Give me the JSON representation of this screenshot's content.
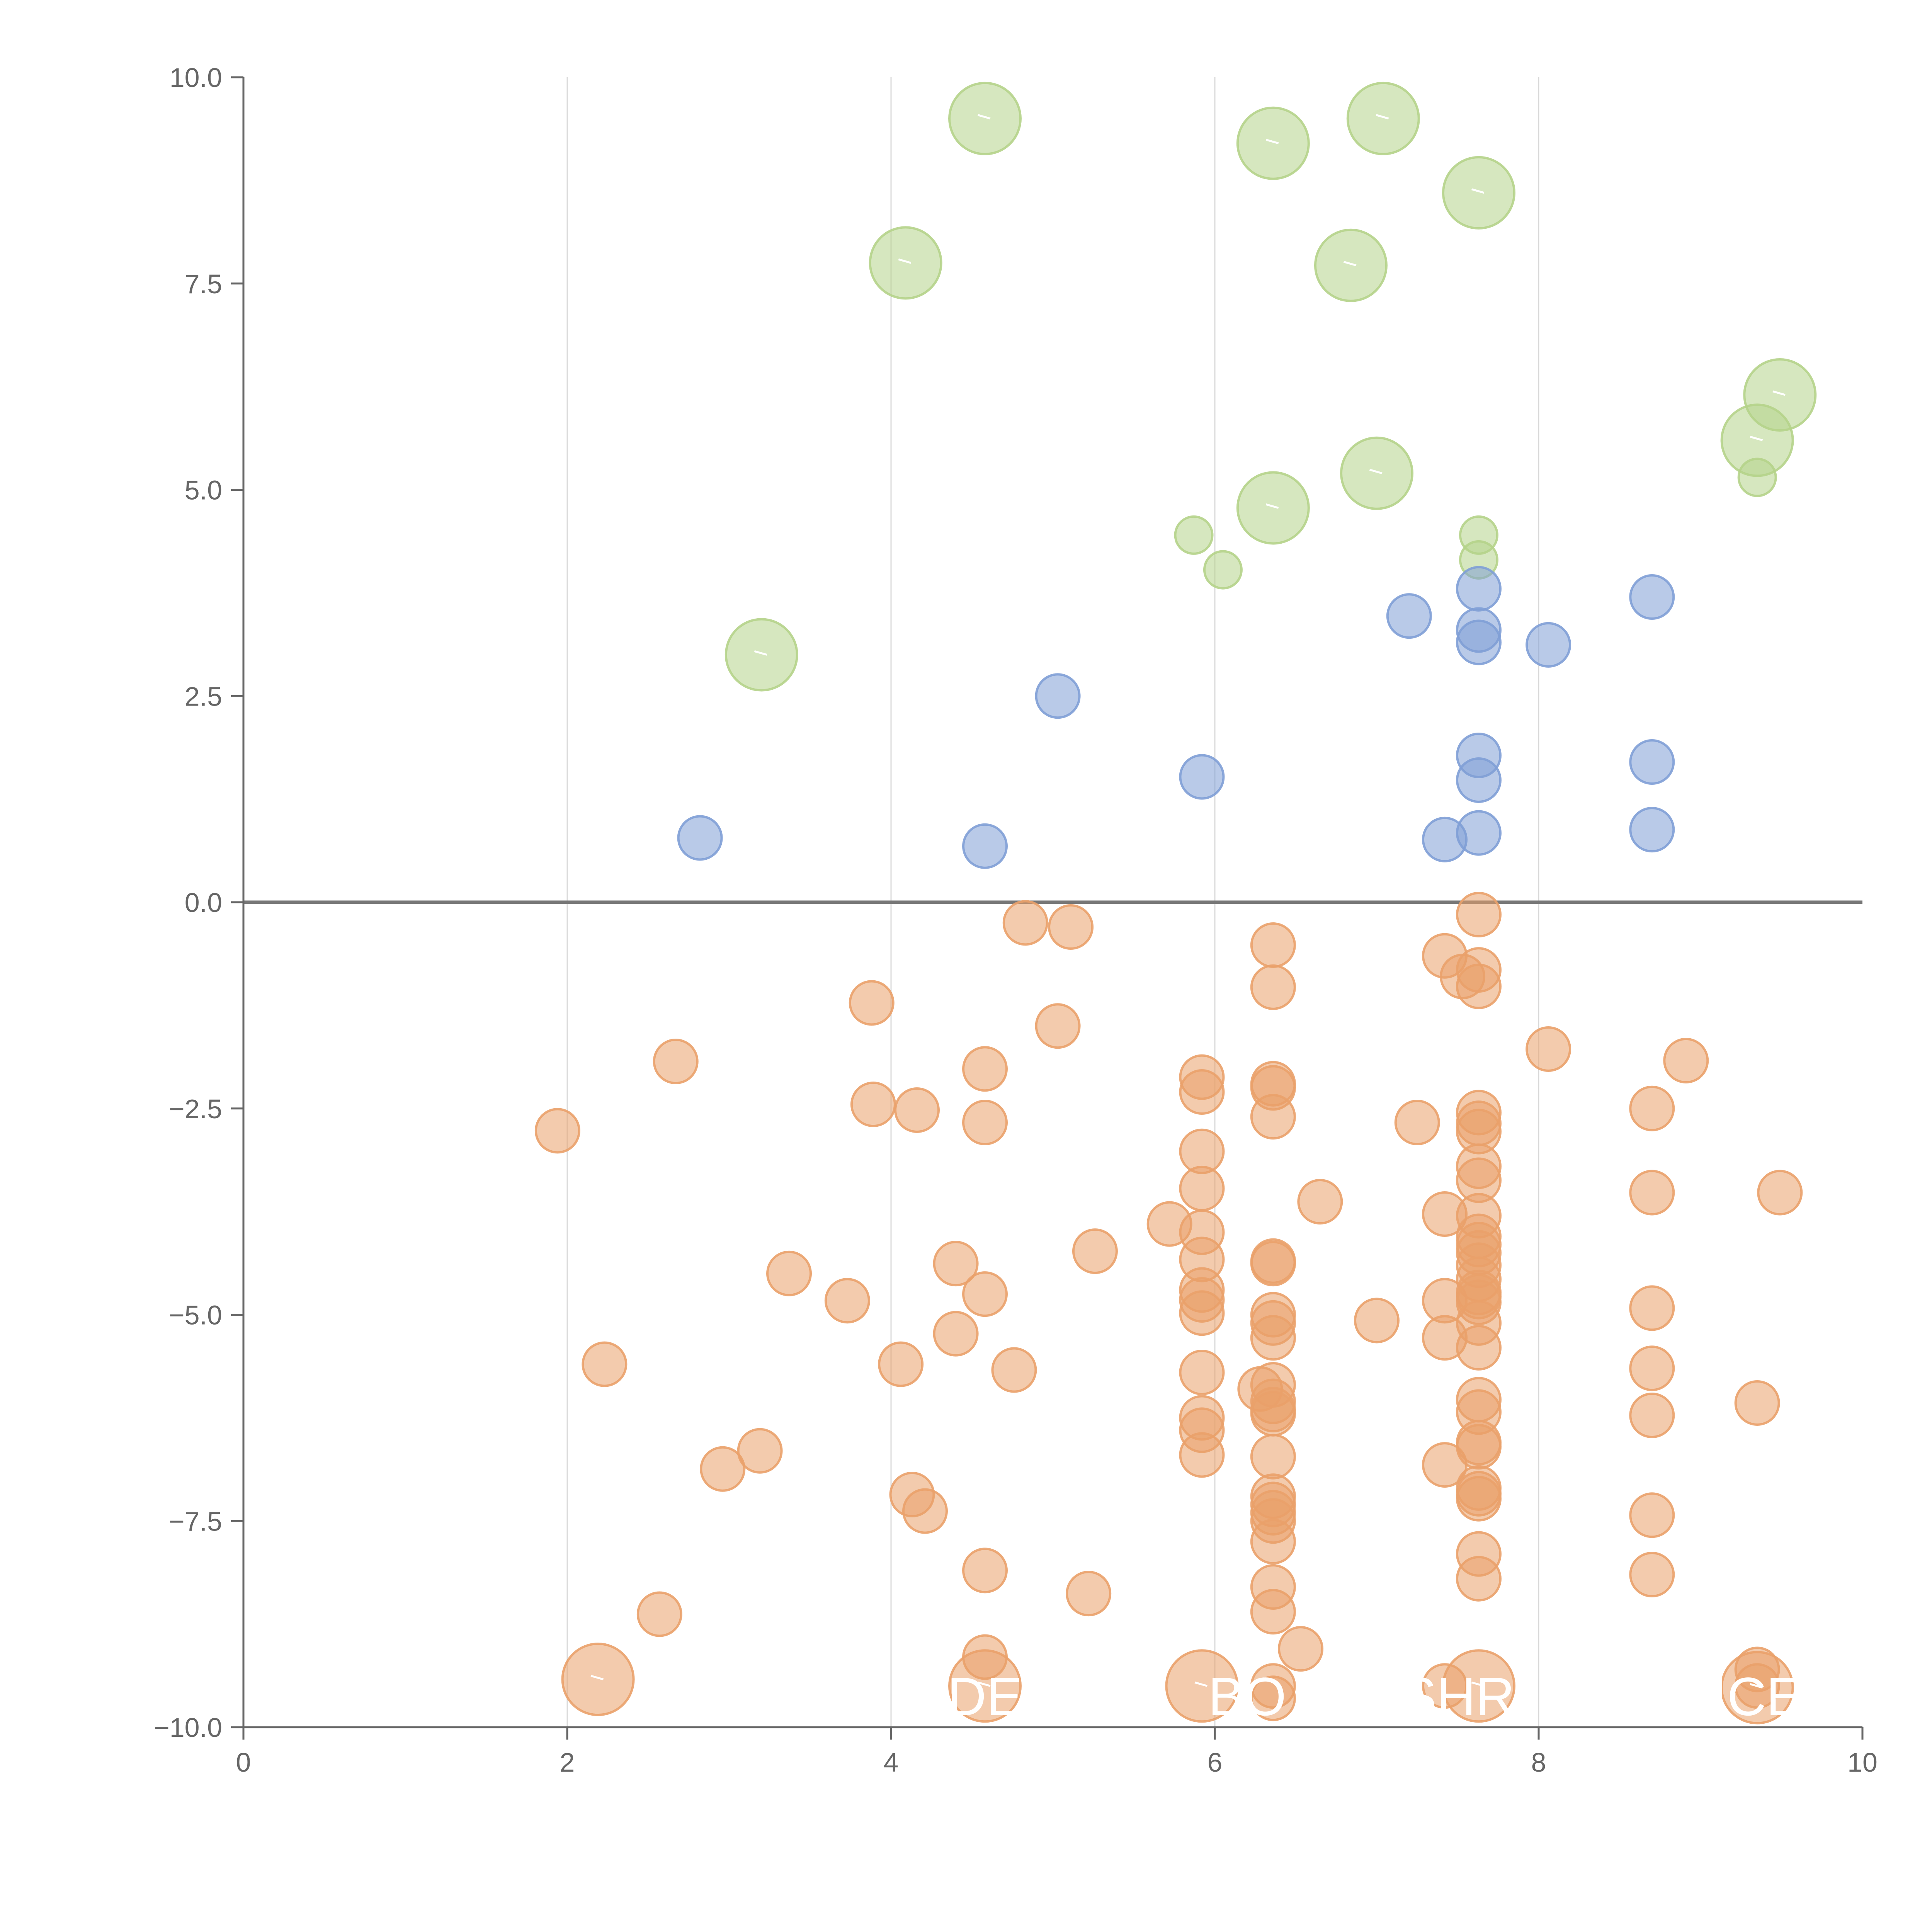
{
  "chart_data": {
    "type": "scatter",
    "title": "",
    "xlabel": "",
    "ylabel": "",
    "xlim": [
      0,
      10
    ],
    "ylim": [
      -10,
      10
    ],
    "x_ticks": [
      "0",
      "2",
      "4",
      "6",
      "8",
      "10"
    ],
    "y_ticks": [
      "−10.0",
      "−7.5",
      "−5.0",
      "−2.5",
      "0.0",
      "2.5",
      "5.0",
      "7.5",
      "10.0"
    ],
    "grid": "vertical",
    "zero_line": true,
    "colors": {
      "green": "#b5d38a",
      "blue": "#7f9fd6",
      "orange": "#eaa16a",
      "axis": "#666666",
      "grid": "#d9d9d9"
    },
    "series": [
      {
        "name": "green",
        "color": "#b5d38a",
        "points": [
          [
            4.58,
            9.5,
            "l"
          ],
          [
            7.04,
            9.5,
            "l"
          ],
          [
            6.36,
            9.2,
            "l"
          ],
          [
            7.63,
            8.6,
            "l"
          ],
          [
            4.09,
            7.75,
            "l"
          ],
          [
            6.84,
            7.72,
            "l"
          ],
          [
            9.49,
            6.15,
            "l"
          ],
          [
            9.35,
            5.6,
            "l"
          ],
          [
            7.0,
            5.2,
            "l"
          ],
          [
            6.36,
            4.78,
            "l"
          ],
          [
            3.2,
            3.0,
            "l"
          ],
          [
            5.87,
            4.45,
            "s"
          ],
          [
            6.05,
            4.03,
            "s"
          ],
          [
            7.63,
            4.45,
            "s"
          ],
          [
            7.63,
            4.15,
            "s"
          ],
          [
            9.35,
            5.15,
            "s"
          ]
        ]
      },
      {
        "name": "blue",
        "color": "#7f9fd6",
        "points": [
          [
            2.82,
            0.78
          ],
          [
            4.58,
            0.68
          ],
          [
            5.03,
            2.5
          ],
          [
            5.92,
            1.52
          ],
          [
            7.2,
            3.47
          ],
          [
            7.42,
            0.76
          ],
          [
            7.63,
            3.8
          ],
          [
            7.63,
            3.3
          ],
          [
            7.63,
            3.15
          ],
          [
            7.63,
            1.78
          ],
          [
            7.63,
            1.48
          ],
          [
            7.63,
            0.84
          ],
          [
            8.06,
            3.12
          ],
          [
            8.7,
            3.7
          ],
          [
            8.7,
            1.7
          ],
          [
            8.7,
            0.88
          ]
        ]
      },
      {
        "name": "orange",
        "color": "#eaa16a",
        "points": [
          [
            1.94,
            -2.77
          ],
          [
            2.23,
            -5.6
          ],
          [
            2.57,
            -8.63
          ],
          [
            2.67,
            -1.93
          ],
          [
            2.96,
            -6.87
          ],
          [
            3.19,
            -6.65
          ],
          [
            3.37,
            -4.5
          ],
          [
            3.73,
            -4.83
          ],
          [
            3.88,
            -1.22
          ],
          [
            3.89,
            -2.45
          ],
          [
            4.06,
            -5.6
          ],
          [
            4.13,
            -7.18
          ],
          [
            4.16,
            -2.52
          ],
          [
            4.21,
            -7.38
          ],
          [
            4.4,
            -4.38
          ],
          [
            4.4,
            -5.23
          ],
          [
            4.58,
            -2.02
          ],
          [
            4.58,
            -2.67
          ],
          [
            4.58,
            -4.75
          ],
          [
            4.58,
            -8.1
          ],
          [
            4.58,
            -9.15
          ],
          [
            4.76,
            -5.67
          ],
          [
            4.83,
            -0.25
          ],
          [
            5.03,
            -1.5
          ],
          [
            5.11,
            -0.3
          ],
          [
            5.22,
            -8.38
          ],
          [
            5.26,
            -4.23
          ],
          [
            5.72,
            -3.9
          ],
          [
            5.92,
            -2.12
          ],
          [
            5.92,
            -2.3
          ],
          [
            5.92,
            -3.02
          ],
          [
            5.92,
            -3.47
          ],
          [
            5.92,
            -4.0
          ],
          [
            5.92,
            -4.33
          ],
          [
            5.92,
            -4.7
          ],
          [
            5.92,
            -4.82
          ],
          [
            5.92,
            -4.98
          ],
          [
            5.92,
            -5.7
          ],
          [
            5.92,
            -6.25
          ],
          [
            5.92,
            -6.4
          ],
          [
            5.92,
            -6.7
          ],
          [
            6.28,
            -5.9
          ],
          [
            6.36,
            -0.52
          ],
          [
            6.36,
            -1.03
          ],
          [
            6.36,
            -2.2
          ],
          [
            6.36,
            -2.25
          ],
          [
            6.36,
            -2.6
          ],
          [
            6.36,
            -4.35
          ],
          [
            6.36,
            -4.38
          ],
          [
            6.36,
            -5.0
          ],
          [
            6.36,
            -5.1
          ],
          [
            6.36,
            -5.28
          ],
          [
            6.36,
            -5.85
          ],
          [
            6.36,
            -6.05
          ],
          [
            6.36,
            -6.15
          ],
          [
            6.36,
            -6.2
          ],
          [
            6.36,
            -6.72
          ],
          [
            6.36,
            -7.2
          ],
          [
            6.36,
            -7.3
          ],
          [
            6.36,
            -7.4
          ],
          [
            6.36,
            -7.5
          ],
          [
            6.36,
            -7.75
          ],
          [
            6.36,
            -8.3
          ],
          [
            6.36,
            -8.6
          ],
          [
            6.36,
            -9.5
          ],
          [
            6.36,
            -9.65
          ],
          [
            6.53,
            -9.05
          ],
          [
            6.65,
            -3.63
          ],
          [
            7.0,
            -5.07
          ],
          [
            7.25,
            -2.67
          ],
          [
            7.42,
            -0.65
          ],
          [
            7.42,
            -3.78
          ],
          [
            7.42,
            -4.83
          ],
          [
            7.42,
            -5.28
          ],
          [
            7.42,
            -6.82
          ],
          [
            7.42,
            -9.5
          ],
          [
            7.53,
            -0.9
          ],
          [
            7.63,
            -0.15
          ],
          [
            7.63,
            -0.82
          ],
          [
            7.63,
            -1.02
          ],
          [
            7.63,
            -2.55
          ],
          [
            7.63,
            -2.68
          ],
          [
            7.63,
            -2.78
          ],
          [
            7.63,
            -3.2
          ],
          [
            7.63,
            -3.37
          ],
          [
            7.63,
            -3.8
          ],
          [
            7.63,
            -4.05
          ],
          [
            7.63,
            -4.15
          ],
          [
            7.63,
            -4.25
          ],
          [
            7.63,
            -4.4
          ],
          [
            7.63,
            -4.57
          ],
          [
            7.63,
            -4.73
          ],
          [
            7.63,
            -4.78
          ],
          [
            7.63,
            -4.85
          ],
          [
            7.63,
            -5.1
          ],
          [
            7.63,
            -5.4
          ],
          [
            7.63,
            -6.03
          ],
          [
            7.63,
            -6.18
          ],
          [
            7.63,
            -6.55
          ],
          [
            7.63,
            -6.6
          ],
          [
            7.63,
            -7.1
          ],
          [
            7.63,
            -7.17
          ],
          [
            7.63,
            -7.23
          ],
          [
            7.63,
            -7.9
          ],
          [
            7.63,
            -8.2
          ],
          [
            8.06,
            -1.78
          ],
          [
            8.7,
            -2.5
          ],
          [
            8.7,
            -3.52
          ],
          [
            8.7,
            -4.92
          ],
          [
            8.7,
            -5.65
          ],
          [
            8.7,
            -6.22
          ],
          [
            8.7,
            -7.43
          ],
          [
            8.7,
            -8.15
          ],
          [
            8.91,
            -1.92
          ],
          [
            9.35,
            -6.07
          ],
          [
            9.35,
            -9.3
          ],
          [
            9.35,
            -9.5
          ],
          [
            9.49,
            -3.52
          ],
          [
            2.19,
            -9.42,
            "l"
          ],
          [
            4.58,
            -9.5,
            "l"
          ],
          [
            5.92,
            -9.5,
            "l"
          ],
          [
            7.63,
            -9.5,
            "l"
          ],
          [
            9.35,
            -9.52,
            "l"
          ]
        ]
      }
    ],
    "labels": [
      {
        "text": "DE",
        "x": 4.58,
        "y": -9.62
      },
      {
        "text": "BO",
        "x": 6.2,
        "y": -9.62
      },
      {
        "text": "SHR",
        "x": 7.5,
        "y": -9.62
      },
      {
        "text": "ICE",
        "x": 9.35,
        "y": -9.62
      }
    ]
  }
}
